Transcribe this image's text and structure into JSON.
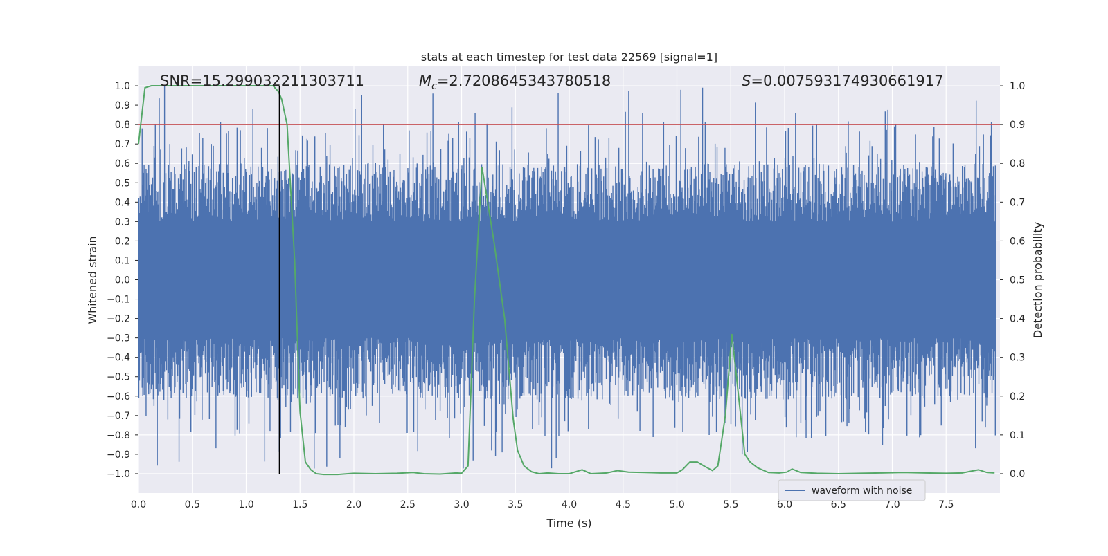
{
  "chart_data": {
    "type": "line",
    "title": "stats at each timestep for test data 22569 [signal=1]",
    "xlabel": "Time (s)",
    "ylabel_left": "Whitened strain",
    "ylabel_right": "Detection probability",
    "xlim": [
      0.0,
      8.0
    ],
    "ylim_left": [
      -1.1,
      1.1
    ],
    "ylim_right": [
      -0.05,
      1.05
    ],
    "x_ticks": [
      0.0,
      0.5,
      1.0,
      1.5,
      2.0,
      2.5,
      3.0,
      3.5,
      4.0,
      4.5,
      5.0,
      5.5,
      6.0,
      6.5,
      7.0,
      7.5
    ],
    "x_tick_labels": [
      "0.0",
      "0.5",
      "1.0",
      "1.5",
      "2.0",
      "2.5",
      "3.0",
      "3.5",
      "4.0",
      "4.5",
      "5.0",
      "5.5",
      "6.0",
      "6.5",
      "7.0",
      "7.5"
    ],
    "y_left_ticks": [
      -1.0,
      -0.9,
      -0.8,
      -0.7,
      -0.6,
      -0.5,
      -0.4,
      -0.3,
      -0.2,
      -0.1,
      0.0,
      0.1,
      0.2,
      0.3,
      0.4,
      0.5,
      0.6,
      0.7,
      0.8,
      0.9,
      1.0
    ],
    "y_left_tick_labels": [
      "−1.0",
      "−0.9",
      "−0.8",
      "−0.7",
      "−0.6",
      "−0.5",
      "−0.4",
      "−0.3",
      "−0.2",
      "−0.1",
      "0.0",
      "0.1",
      "0.2",
      "0.3",
      "0.4",
      "0.5",
      "0.6",
      "0.7",
      "0.8",
      "0.9",
      "1.0"
    ],
    "y_right_ticks": [
      0.0,
      0.1,
      0.2,
      0.3,
      0.4,
      0.5,
      0.6,
      0.7,
      0.8,
      0.9,
      1.0
    ],
    "y_right_tick_labels": [
      "0.0",
      "0.1",
      "0.2",
      "0.3",
      "0.4",
      "0.5",
      "0.6",
      "0.7",
      "0.8",
      "0.9",
      "1.0"
    ],
    "grid": true,
    "legend_position": "lower-right",
    "annotations": {
      "snr": "SNR=15.299032211303711",
      "mc_symbol": "M",
      "mc_subscript": "c",
      "mc_value": "=2.7208645343780518",
      "s_symbol": "S",
      "s_value": "=0.007593174930661917"
    },
    "threshold_right": 0.9,
    "marker_time": 1.31,
    "series": [
      {
        "name": "waveform with noise",
        "axis": "left",
        "color": "#4c72b0",
        "show_in_legend": true,
        "description": "dense whitened strain noise, approx. within [-1.0, 1.0], mostly within [-0.6, 0.6]"
      },
      {
        "name": "detection probability",
        "axis": "right",
        "color": "#55a868",
        "show_in_legend": false,
        "x": [
          0.0,
          0.06,
          0.12,
          0.2,
          0.4,
          0.6,
          0.8,
          1.0,
          1.15,
          1.25,
          1.3,
          1.33,
          1.38,
          1.45,
          1.5,
          1.55,
          1.6,
          1.65,
          1.72,
          1.85,
          2.0,
          2.2,
          2.4,
          2.55,
          2.65,
          2.8,
          2.95,
          3.0,
          3.06,
          3.12,
          3.19,
          3.3,
          3.4,
          3.48,
          3.52,
          3.58,
          3.65,
          3.72,
          3.8,
          3.9,
          4.0,
          4.12,
          4.2,
          4.35,
          4.45,
          4.55,
          4.7,
          4.85,
          5.0,
          5.05,
          5.12,
          5.19,
          5.25,
          5.33,
          5.38,
          5.45,
          5.51,
          5.58,
          5.63,
          5.68,
          5.75,
          5.85,
          5.95,
          6.02,
          6.07,
          6.15,
          6.3,
          6.5,
          6.7,
          6.9,
          7.1,
          7.3,
          7.5,
          7.65,
          7.8,
          7.88,
          7.95
        ],
        "y": [
          0.85,
          0.995,
          1.0,
          1.0,
          1.0,
          1.0,
          1.0,
          1.0,
          1.0,
          1.0,
          0.985,
          0.965,
          0.9,
          0.55,
          0.16,
          0.03,
          0.01,
          0.0,
          -0.002,
          -0.002,
          0.001,
          0.0,
          0.001,
          0.003,
          0.0,
          -0.001,
          0.002,
          0.001,
          0.02,
          0.45,
          0.79,
          0.6,
          0.4,
          0.14,
          0.06,
          0.02,
          0.005,
          0.0,
          0.002,
          0.0,
          0.0,
          0.01,
          0.0,
          0.002,
          0.008,
          0.004,
          0.003,
          0.002,
          0.002,
          0.01,
          0.03,
          0.03,
          0.02,
          0.008,
          0.02,
          0.15,
          0.36,
          0.18,
          0.05,
          0.03,
          0.015,
          0.003,
          0.002,
          0.004,
          0.012,
          0.003,
          0.001,
          0.0,
          0.001,
          0.002,
          0.003,
          0.002,
          0.001,
          0.002,
          0.01,
          0.003,
          0.002
        ]
      }
    ]
  }
}
